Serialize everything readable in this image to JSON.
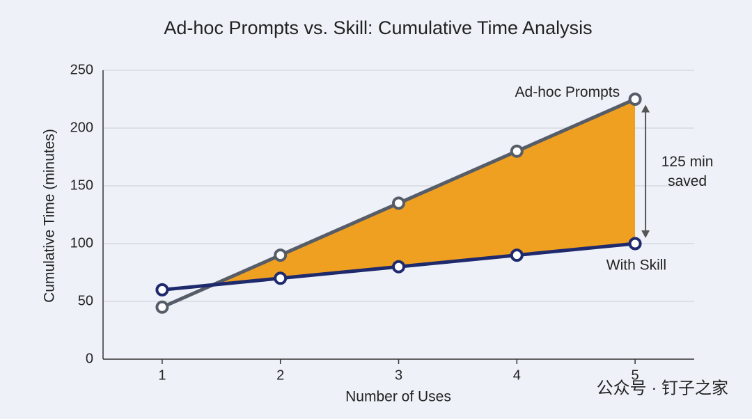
{
  "chart_data": {
    "type": "line",
    "title": "Ad-hoc Prompts vs. Skill: Cumulative Time Analysis",
    "x_label": "Number of Uses",
    "y_label": "Cumulative Time (minutes)",
    "x": [
      1,
      2,
      3,
      4,
      5
    ],
    "series": [
      {
        "name": "Ad-hoc Prompts",
        "color": "#565d68",
        "values": [
          45,
          90,
          135,
          180,
          225
        ]
      },
      {
        "name": "With Skill",
        "color": "#1f2a6e",
        "values": [
          60,
          70,
          80,
          90,
          100
        ]
      }
    ],
    "fill_color": "#f0a020",
    "xlim": [
      0.5,
      5.5
    ],
    "xticks": [
      1,
      2,
      3,
      4,
      5
    ],
    "ylim": [
      0,
      250
    ],
    "yticks": [
      0,
      50,
      100,
      150,
      200,
      250
    ],
    "grid": true,
    "annotation": [
      "125 min",
      "saved"
    ],
    "watermark": "公众号 · 钉子之家"
  }
}
